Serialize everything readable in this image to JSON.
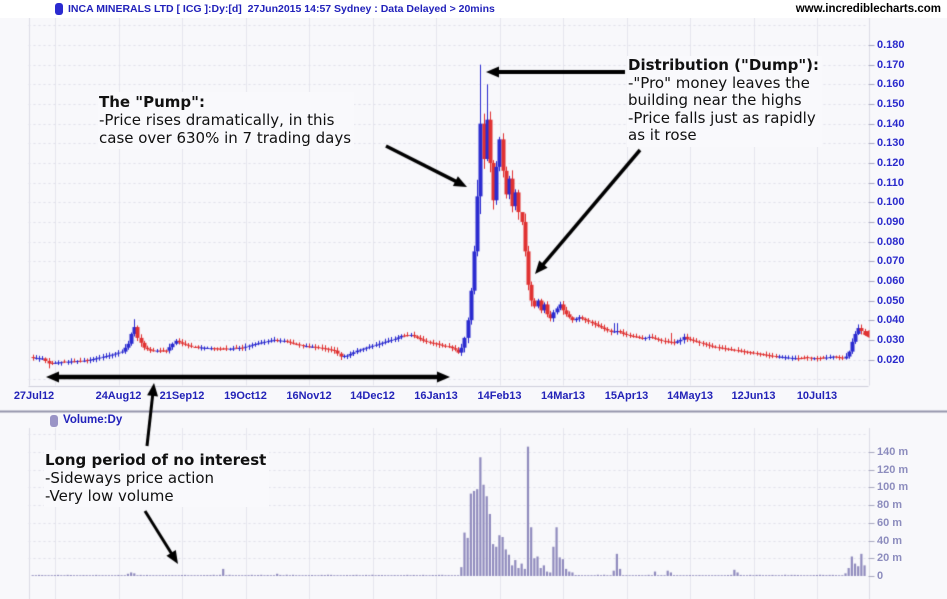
{
  "header": {
    "title": "INCA MINERALS LTD [ ICG ]:Dy:[d]  27Jun2015 14:57 Sydney : Data Delayed > 20mins",
    "website": "www.incrediblecharts.com"
  },
  "volume_header": {
    "label": "Volume:Dy"
  },
  "annotations": {
    "pump": {
      "title": "The \"Pump\":",
      "lines": [
        "-Price rises dramatically, in this",
        "case over 630% in 7 trading days"
      ]
    },
    "dump": {
      "title": "Distribution (\"Dump\"):",
      "lines": [
        "-\"Pro\" money leaves the",
        "building near the highs",
        "-Price falls just as rapidly",
        "as it rose"
      ]
    },
    "quiet": {
      "title": "Long period of no interest",
      "lines": [
        "-Sideways price action",
        "-Very low volume"
      ]
    }
  },
  "chart_data": {
    "type": "candlestick_with_volume",
    "title": "INCA MINERALS LTD [ICG] daily — pump and dump example",
    "x_tick_labels": [
      "27Jul12",
      "24Aug12",
      "21Sep12",
      "19Oct12",
      "16Nov12",
      "14Dec12",
      "16Jan13",
      "14Feb13",
      "14Mar13",
      "15Apr13",
      "14May13",
      "12Jun13",
      "10Jul13"
    ],
    "price_axis": {
      "min": 0.02,
      "max": 0.18,
      "step": 0.01,
      "tick_labels": [
        "0.180",
        "0.170",
        "0.160",
        "0.150",
        "0.140",
        "0.130",
        "0.120",
        "0.110",
        "0.100",
        "0.090",
        "0.080",
        "0.070",
        "0.060",
        "0.050",
        "0.040",
        "0.030",
        "0.020"
      ]
    },
    "volume_axis": {
      "min": 0,
      "max": 140,
      "step": 20,
      "unit": "m",
      "tick_labels": [
        "140 m",
        "120 m",
        "100 m",
        "80 m",
        "60 m",
        "40 m",
        "20 m",
        "0"
      ]
    },
    "grid": true,
    "legend_position": "none",
    "last_price_marker": 0.033,
    "close_path": [
      [
        0,
        0.021
      ],
      [
        3,
        0.0205
      ],
      [
        5,
        0.018
      ],
      [
        8,
        0.0185
      ],
      [
        12,
        0.019
      ],
      [
        17,
        0.0195
      ],
      [
        21,
        0.021
      ],
      [
        25,
        0.0225
      ],
      [
        28,
        0.024
      ],
      [
        30,
        0.028
      ],
      [
        31,
        0.033
      ],
      [
        32,
        0.0365
      ],
      [
        33,
        0.031
      ],
      [
        35,
        0.026
      ],
      [
        37,
        0.0245
      ],
      [
        42,
        0.0245
      ],
      [
        44,
        0.028
      ],
      [
        45,
        0.0295
      ],
      [
        47,
        0.028
      ],
      [
        50,
        0.0265
      ],
      [
        54,
        0.026
      ],
      [
        58,
        0.0255
      ],
      [
        62,
        0.0255
      ],
      [
        66,
        0.026
      ],
      [
        69,
        0.0275
      ],
      [
        73,
        0.029
      ],
      [
        76,
        0.03
      ],
      [
        79,
        0.0295
      ],
      [
        82,
        0.028
      ],
      [
        85,
        0.027
      ],
      [
        88,
        0.0265
      ],
      [
        92,
        0.0255
      ],
      [
        95,
        0.0245
      ],
      [
        97,
        0.0215
      ],
      [
        99,
        0.022
      ],
      [
        102,
        0.0245
      ],
      [
        105,
        0.026
      ],
      [
        108,
        0.0275
      ],
      [
        111,
        0.029
      ],
      [
        114,
        0.0305
      ],
      [
        116,
        0.032
      ],
      [
        119,
        0.0325
      ],
      [
        121,
        0.031
      ],
      [
        123,
        0.0295
      ],
      [
        125,
        0.0285
      ],
      [
        127,
        0.028
      ],
      [
        129,
        0.027
      ],
      [
        131,
        0.0265
      ],
      [
        133,
        0.025
      ],
      [
        134,
        0.0235
      ],
      [
        135,
        0.026
      ],
      [
        136,
        0.031
      ],
      [
        137,
        0.04
      ],
      [
        138,
        0.055
      ],
      [
        139,
        0.075
      ],
      [
        140,
        0.103
      ],
      [
        141,
        0.14
      ],
      [
        142,
        0.122
      ],
      [
        143,
        0.142
      ],
      [
        144,
        0.12
      ],
      [
        145,
        0.101
      ],
      [
        146,
        0.118
      ],
      [
        147,
        0.132
      ],
      [
        148,
        0.116
      ],
      [
        149,
        0.104
      ],
      [
        150,
        0.112
      ],
      [
        151,
        0.098
      ],
      [
        152,
        0.105
      ],
      [
        153,
        0.095
      ],
      [
        154,
        0.09
      ],
      [
        155,
        0.075
      ],
      [
        156,
        0.058
      ],
      [
        157,
        0.05
      ],
      [
        158,
        0.047
      ],
      [
        159,
        0.05
      ],
      [
        160,
        0.045
      ],
      [
        161,
        0.048
      ],
      [
        162,
        0.043
      ],
      [
        163,
        0.041
      ],
      [
        164,
        0.044
      ],
      [
        165,
        0.046
      ],
      [
        166,
        0.048
      ],
      [
        167,
        0.045
      ],
      [
        168,
        0.043
      ],
      [
        169,
        0.0415
      ],
      [
        170,
        0.04
      ],
      [
        172,
        0.0415
      ],
      [
        174,
        0.04
      ],
      [
        176,
        0.0385
      ],
      [
        178,
        0.037
      ],
      [
        180,
        0.0355
      ],
      [
        182,
        0.034
      ],
      [
        184,
        0.0345
      ],
      [
        186,
        0.033
      ],
      [
        188,
        0.032
      ],
      [
        190,
        0.0315
      ],
      [
        192,
        0.0305
      ],
      [
        194,
        0.0315
      ],
      [
        196,
        0.0305
      ],
      [
        198,
        0.0295
      ],
      [
        200,
        0.029
      ],
      [
        202,
        0.0285
      ],
      [
        204,
        0.03
      ],
      [
        205,
        0.0315
      ],
      [
        206,
        0.0305
      ],
      [
        208,
        0.0295
      ],
      [
        210,
        0.0285
      ],
      [
        212,
        0.0275
      ],
      [
        214,
        0.0265
      ],
      [
        216,
        0.026
      ],
      [
        218,
        0.0255
      ],
      [
        220,
        0.025
      ],
      [
        222,
        0.0245
      ],
      [
        224,
        0.024
      ],
      [
        226,
        0.0235
      ],
      [
        228,
        0.023
      ],
      [
        230,
        0.0225
      ],
      [
        232,
        0.022
      ],
      [
        235,
        0.0215
      ],
      [
        238,
        0.021
      ],
      [
        241,
        0.0205
      ],
      [
        244,
        0.021
      ],
      [
        247,
        0.0205
      ],
      [
        250,
        0.021
      ],
      [
        252,
        0.0215
      ],
      [
        254,
        0.021
      ],
      [
        255,
        0.0205
      ],
      [
        256,
        0.0215
      ],
      [
        257,
        0.024
      ],
      [
        258,
        0.029
      ],
      [
        259,
        0.033
      ],
      [
        260,
        0.036
      ],
      [
        261,
        0.0345
      ],
      [
        262,
        0.033
      ]
    ],
    "wick_overrides": {
      "5": {
        "low": 0.0155
      },
      "32": {
        "high": 0.0405
      },
      "141": {
        "high": 0.17
      },
      "143": {
        "high": 0.16
      },
      "154": {
        "high": 0.093
      },
      "183": {
        "high": 0.0385
      },
      "184": {
        "high": 0.0385
      },
      "201": {
        "high": 0.0335
      }
    },
    "volume_spikes": [
      [
        30,
        2.5
      ],
      [
        31,
        4
      ],
      [
        32,
        3
      ],
      [
        60,
        8
      ],
      [
        77,
        2.5
      ],
      [
        135,
        10
      ],
      [
        136,
        49
      ],
      [
        137,
        43
      ],
      [
        138,
        93
      ],
      [
        139,
        96
      ],
      [
        140,
        98
      ],
      [
        141,
        134
      ],
      [
        142,
        103
      ],
      [
        143,
        90
      ],
      [
        144,
        70
      ],
      [
        145,
        36
      ],
      [
        146,
        33
      ],
      [
        147,
        46
      ],
      [
        148,
        44
      ],
      [
        149,
        30
      ],
      [
        150,
        24
      ],
      [
        151,
        12
      ],
      [
        152,
        18
      ],
      [
        153,
        9
      ],
      [
        154,
        14
      ],
      [
        155,
        8
      ],
      [
        156,
        146
      ],
      [
        157,
        55
      ],
      [
        158,
        20
      ],
      [
        159,
        22
      ],
      [
        160,
        9
      ],
      [
        161,
        12
      ],
      [
        162,
        5
      ],
      [
        163,
        4
      ],
      [
        164,
        33
      ],
      [
        165,
        55
      ],
      [
        166,
        21
      ],
      [
        167,
        19
      ],
      [
        168,
        8
      ],
      [
        169,
        5
      ],
      [
        170,
        4
      ],
      [
        183,
        6
      ],
      [
        184,
        25
      ],
      [
        185,
        8
      ],
      [
        196,
        5
      ],
      [
        200,
        6
      ],
      [
        201,
        4
      ],
      [
        221,
        7
      ],
      [
        222,
        4
      ],
      [
        256,
        3
      ],
      [
        257,
        9
      ],
      [
        258,
        22
      ],
      [
        259,
        14
      ],
      [
        260,
        11
      ],
      [
        261,
        25
      ],
      [
        262,
        12
      ]
    ],
    "colors": {
      "candle_up": "#2b2bd0",
      "candle_down": "#e03232",
      "volume_bar": "#918cbe",
      "price_label": "#2a2acc",
      "x_label": "#2323b8",
      "volume_label": "#8d8dbe",
      "title_blue": "#2222bb",
      "arrow": "#000000",
      "grid_vertical": "#e6e6ee",
      "grid_horizontal": "#e0e0ea",
      "separator": "#9595ab",
      "pane_background": "#f8f8fb",
      "marker_red": "#e03232"
    }
  }
}
